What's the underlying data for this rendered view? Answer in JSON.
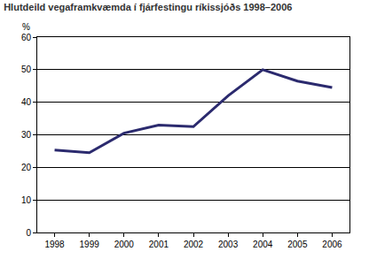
{
  "chart_data": {
    "type": "line",
    "title": "Hlutdeild vegaframkvæmda í fjárfestingu ríkissjóðs 1998–2006",
    "y_label": "%",
    "categories": [
      "1998",
      "1999",
      "2000",
      "2001",
      "2002",
      "2003",
      "2004",
      "2005",
      "2006"
    ],
    "values": [
      25.3,
      24.5,
      30.5,
      33,
      32.5,
      42,
      50,
      46.5,
      44.5
    ],
    "color": "#2b2a6e",
    "ylim": [
      0,
      60
    ],
    "yticks": [
      0,
      10,
      20,
      30,
      40,
      50,
      60
    ],
    "grid": true
  }
}
